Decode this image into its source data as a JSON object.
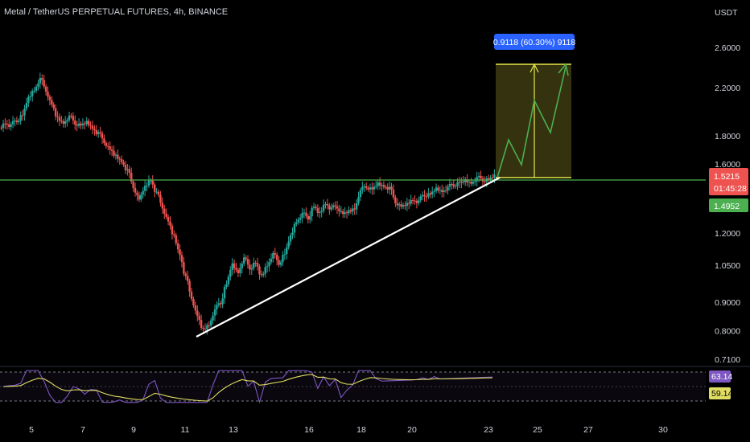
{
  "header": {
    "symbol_title": "Metal / TetherUS PERPETUAL FUTURES, 4h, BINANCE"
  },
  "price_axis": {
    "currency": "USDT",
    "ticks": [
      "2.6000",
      "2.2000",
      "1.8000",
      "1.6000",
      "1.2000",
      "1.0500",
      "0.9000",
      "0.8000",
      "0.7100"
    ]
  },
  "price_badges": {
    "last_price": "1.5215",
    "countdown": "01:45:28",
    "level_price": "1.4952"
  },
  "measure_label": "0.9118 (60.30%) 9118",
  "rsi": {
    "value": "63.14",
    "ma_value": "59.14"
  },
  "time_axis": {
    "labels": [
      "5",
      "7",
      "9",
      "11",
      "13",
      "16",
      "18",
      "20",
      "23",
      "25",
      "27",
      "30"
    ]
  },
  "colors": {
    "up": "#26a69a",
    "down": "#ef5350",
    "resistance_line": "#4caf50",
    "trendline": "#ffffff",
    "target_box": "#3d3b12",
    "target_lines": "#e8e84c",
    "projection": "#4caf50",
    "measure_bg": "#2962ff",
    "rsi_line": "#7e57c2",
    "rsi_ma": "#e0de62"
  },
  "chart_data": {
    "type": "candlestick",
    "symbol": "Metal / TetherUS PERPETUAL FUTURES",
    "interval": "4h",
    "exchange": "BINANCE",
    "y_axis_unit": "USDT",
    "y_scale": "log",
    "ylim": [
      0.68,
      3.0
    ],
    "x_axis_labels": [
      "5",
      "7",
      "9",
      "11",
      "13",
      "16",
      "18",
      "20",
      "23",
      "25",
      "27",
      "30"
    ],
    "last_price": 1.5215,
    "horizontal_level": 1.5215,
    "target_zone": {
      "bottom": 1.5215,
      "top": 2.4333,
      "change": 0.9118,
      "percent": 60.3
    },
    "trendline": {
      "from_price": 0.78,
      "to_price": 1.52
    },
    "candles_close_path": [
      1.9,
      1.88,
      1.92,
      1.96,
      2.1,
      2.18,
      2.28,
      2.18,
      2.05,
      1.93,
      1.9,
      1.95,
      1.9,
      1.88,
      1.9,
      1.86,
      1.82,
      1.76,
      1.7,
      1.65,
      1.62,
      1.56,
      1.46,
      1.38,
      1.45,
      1.5,
      1.42,
      1.34,
      1.26,
      1.18,
      1.1,
      1.0,
      0.92,
      0.85,
      0.8,
      0.82,
      0.87,
      0.9,
      0.97,
      1.05,
      1.02,
      1.08,
      1.04,
      1.06,
      1.0,
      1.05,
      1.1,
      1.06,
      1.1,
      1.18,
      1.26,
      1.3,
      1.28,
      1.34,
      1.3,
      1.36,
      1.33,
      1.34,
      1.3,
      1.31,
      1.33,
      1.43,
      1.46,
      1.44,
      1.47,
      1.46,
      1.45,
      1.37,
      1.34,
      1.35,
      1.38,
      1.37,
      1.41,
      1.41,
      1.44,
      1.43,
      1.45,
      1.47,
      1.48,
      1.49,
      1.48,
      1.51,
      1.5,
      1.5,
      1.52
    ],
    "rsi": {
      "value": 63.14,
      "ma": 59.14,
      "bands": [
        30,
        50,
        70
      ]
    },
    "annotations": [
      "ascending triangle breakout projection"
    ]
  }
}
